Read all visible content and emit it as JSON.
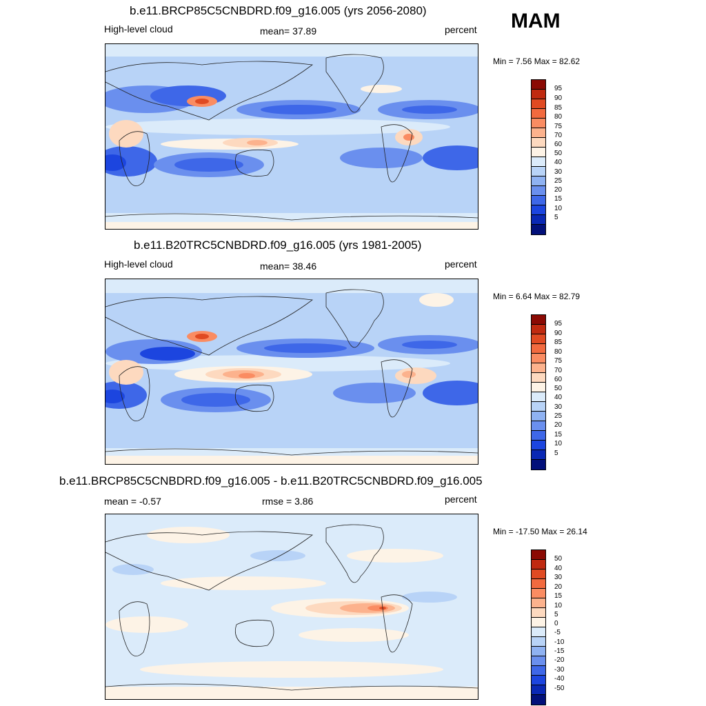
{
  "season": "MAM",
  "colors": {
    "pos": [
      "#fdf3e6",
      "#fdd9bf",
      "#fcb28d",
      "#fa8c62",
      "#f26a3f",
      "#e04a22",
      "#c02a10",
      "#8b0a04"
    ],
    "neg": [
      "#dbebfa",
      "#b8d3f7",
      "#8fb2f2",
      "#6a8fee",
      "#3e67e8",
      "#1c45df",
      "#0a28b4",
      "#02107a"
    ]
  },
  "panels": [
    {
      "title": "b.e11.BRCP85C5CNBDRD.f09_g16.005 (yrs 2056-2080)",
      "left": "High-level cloud",
      "center": "mean=  37.89",
      "right": "percent",
      "minmax": "Min =   7.56 Max =  82.62",
      "colorbar_labels": [
        "95",
        "90",
        "85",
        "80",
        "75",
        "70",
        "60",
        "50",
        "40",
        "30",
        "25",
        "20",
        "15",
        "10",
        "5"
      ]
    },
    {
      "title": "b.e11.B20TRC5CNBDRD.f09_g16.005 (yrs 1981-2005)",
      "left": "High-level cloud",
      "center": "mean=  38.46",
      "right": "percent",
      "minmax": "Min =   6.64 Max =  82.79",
      "colorbar_labels": [
        "95",
        "90",
        "85",
        "80",
        "75",
        "70",
        "60",
        "50",
        "40",
        "30",
        "25",
        "20",
        "15",
        "10",
        "5"
      ]
    },
    {
      "title": "b.e11.BRCP85C5CNBDRD.f09_g16.005 - b.e11.B20TRC5CNBDRD.f09_g16.005",
      "left": "mean =  -0.57",
      "center": "rmse =   3.86",
      "right": "percent",
      "minmax": "Min = -17.50 Max =  26.14",
      "colorbar_labels": [
        "50",
        "40",
        "30",
        "20",
        "15",
        "10",
        "5",
        "0",
        "-5",
        "-10",
        "-15",
        "-20",
        "-30",
        "-40",
        "-50"
      ]
    }
  ]
}
